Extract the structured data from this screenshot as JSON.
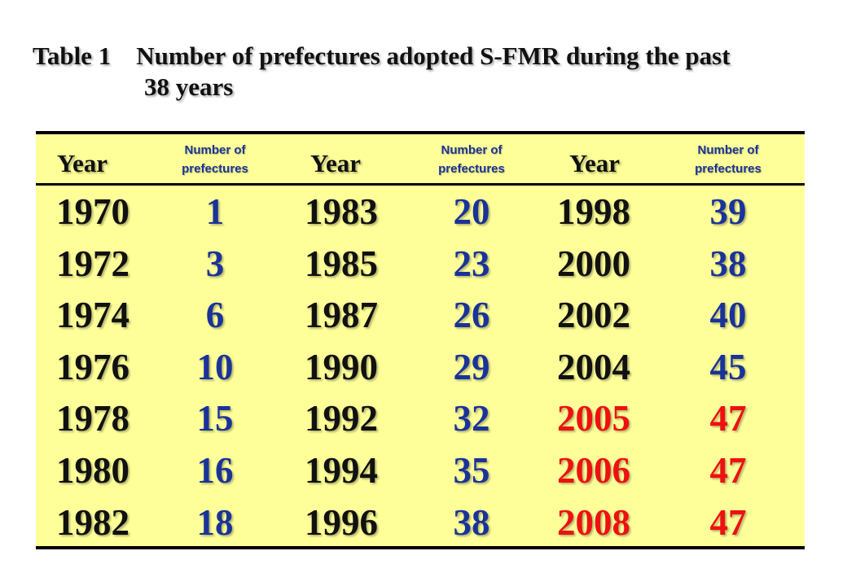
{
  "title": {
    "line1": "Table 1    Number of prefectures adopted S-FMR during the past",
    "line2": "38 years"
  },
  "header": {
    "year_label": "Year",
    "num_label_line1": "Number of",
    "num_label_line2": "prefectures"
  },
  "colors": {
    "background": "#FFFF99",
    "year_text": "#111111",
    "number_text": "#1a3399",
    "highlight_text": "#ee1111"
  },
  "rows": [
    [
      {
        "v": "1970",
        "k": "year"
      },
      {
        "v": "1",
        "k": "num"
      },
      {
        "v": "1983",
        "k": "year"
      },
      {
        "v": "20",
        "k": "num"
      },
      {
        "v": "1998",
        "k": "year"
      },
      {
        "v": "39",
        "k": "num"
      }
    ],
    [
      {
        "v": "1972",
        "k": "year"
      },
      {
        "v": "3",
        "k": "num"
      },
      {
        "v": "1985",
        "k": "year"
      },
      {
        "v": "23",
        "k": "num"
      },
      {
        "v": "2000",
        "k": "year"
      },
      {
        "v": "38",
        "k": "num"
      }
    ],
    [
      {
        "v": "1974",
        "k": "year"
      },
      {
        "v": "6",
        "k": "num"
      },
      {
        "v": "1987",
        "k": "year"
      },
      {
        "v": "26",
        "k": "num"
      },
      {
        "v": "2002",
        "k": "year"
      },
      {
        "v": "40",
        "k": "num"
      }
    ],
    [
      {
        "v": "1976",
        "k": "year"
      },
      {
        "v": "10",
        "k": "num"
      },
      {
        "v": "1990",
        "k": "year"
      },
      {
        "v": "29",
        "k": "num"
      },
      {
        "v": "2004",
        "k": "year"
      },
      {
        "v": "45",
        "k": "num"
      }
    ],
    [
      {
        "v": "1978",
        "k": "year"
      },
      {
        "v": "15",
        "k": "num"
      },
      {
        "v": "1992",
        "k": "year"
      },
      {
        "v": "32",
        "k": "num"
      },
      {
        "v": "2005",
        "k": "hl"
      },
      {
        "v": "47",
        "k": "hl"
      }
    ],
    [
      {
        "v": "1980",
        "k": "year"
      },
      {
        "v": "16",
        "k": "num"
      },
      {
        "v": "1994",
        "k": "year"
      },
      {
        "v": "35",
        "k": "num"
      },
      {
        "v": "2006",
        "k": "hl"
      },
      {
        "v": "47",
        "k": "hl"
      }
    ],
    [
      {
        "v": "1982",
        "k": "year"
      },
      {
        "v": "18",
        "k": "num"
      },
      {
        "v": "1996",
        "k": "year"
      },
      {
        "v": "38",
        "k": "num"
      },
      {
        "v": "2008",
        "k": "hl"
      },
      {
        "v": "47",
        "k": "hl"
      }
    ]
  ]
}
